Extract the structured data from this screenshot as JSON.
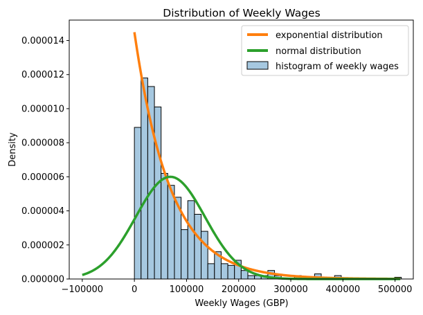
{
  "chart_data": {
    "type": "histogram",
    "title": "Distribution of Weekly Wages",
    "xlabel": "Weekly Wages (GBP)",
    "ylabel": "Density",
    "xlim": [
      -125000,
      535000
    ],
    "ylim": [
      0,
      1.52e-05
    ],
    "x_ticks": [
      -100000,
      0,
      100000,
      200000,
      300000,
      400000,
      500000
    ],
    "x_tick_labels": [
      "−100000",
      "0",
      "100000",
      "200000",
      "300000",
      "400000",
      "500000"
    ],
    "y_ticks": [
      0,
      2e-06,
      4e-06,
      6e-06,
      8e-06,
      1e-05,
      1.2e-05,
      1.4e-05
    ],
    "y_tick_labels": [
      "0.000000",
      "0.000002",
      "0.000004",
      "0.000006",
      "0.000008",
      "0.000010",
      "0.000012",
      "0.000014"
    ],
    "grid": false,
    "legend_position": "top-right",
    "colors": {
      "histogram_fill": "#a6c8e0",
      "histogram_edge": "#000000",
      "exponential": "#ff7f0e",
      "normal": "#2ca02c"
    },
    "histogram": {
      "name": "histogram of weekly wages",
      "bin_start": 0,
      "bin_width": 12800,
      "densities": [
        8.9e-06,
        1.18e-05,
        1.13e-05,
        1.01e-05,
        6.2e-06,
        5.5e-06,
        4.8e-06,
        2.9e-06,
        4.6e-06,
        3.8e-06,
        2.8e-06,
        9e-07,
        1.6e-06,
        9e-07,
        8e-07,
        1.1e-06,
        5e-07,
        2e-07,
        2e-07,
        2e-07,
        5e-07,
        2e-07,
        0,
        0,
        2e-07,
        0,
        0,
        3e-07,
        0,
        0,
        2e-07,
        0,
        0,
        0,
        0,
        0,
        0,
        0,
        0,
        1e-07
      ]
    },
    "series": [
      {
        "name": "exponential distribution",
        "kind": "exponential",
        "x_range": [
          0,
          510000
        ],
        "rate": 1.449e-05,
        "scale": 1.449e-05
      },
      {
        "name": "normal distribution",
        "kind": "normal",
        "x_range": [
          -100000,
          510000
        ],
        "mean": 69000,
        "std": 66500
      }
    ]
  }
}
